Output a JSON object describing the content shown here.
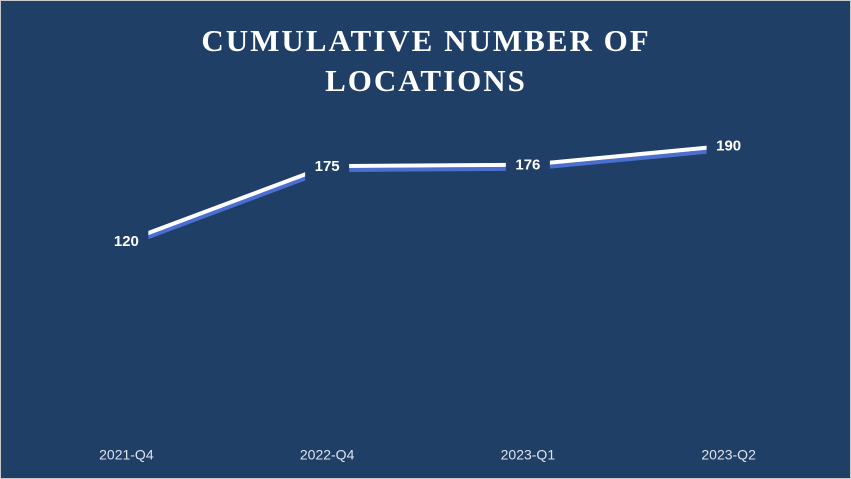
{
  "chart_data": {
    "type": "line",
    "title": "CUMULATIVE NUMBER OF LOCATIONS",
    "categories": [
      "2021-Q4",
      "2022-Q4",
      "2023-Q1",
      "2023-Q2"
    ],
    "values": [
      120,
      175,
      176,
      190
    ],
    "color": "#ffffff",
    "shadow_color": "#4a6fd0",
    "ylim": [
      0,
      200
    ],
    "data_labels": true
  }
}
